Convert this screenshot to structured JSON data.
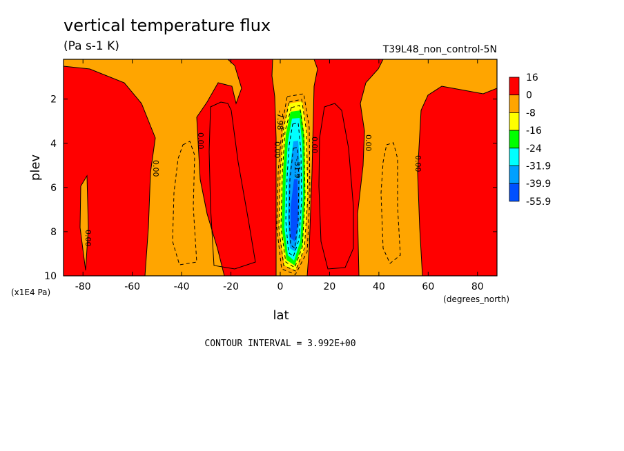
{
  "chart_data": {
    "type": "heatmap",
    "title": "vertical temperature flux",
    "units_label": "(Pa s-1 K)",
    "run_label": "T39L48_non_control-5N",
    "xlabel": "lat",
    "xlabel_units": "(degrees_north)",
    "ylabel": "plev",
    "ylabel_units": "(x1E4 Pa)",
    "x_ticks": [
      -80,
      -60,
      -40,
      -20,
      0,
      20,
      40,
      60,
      80
    ],
    "x_tick_labels": [
      "-80",
      "-60",
      "-40",
      "-20",
      "0",
      "20",
      "40",
      "60",
      "80"
    ],
    "y_ticks": [
      2,
      4,
      6,
      8,
      10
    ],
    "y_tick_labels": [
      "2",
      "4",
      "6",
      "8",
      "10"
    ],
    "xlim": [
      -87.9,
      87.9
    ],
    "ylim": [
      10,
      0.2
    ],
    "contour_interval_text": "CONTOUR INTERVAL = 3.992E+00",
    "legend": {
      "labels": [
        "16",
        "0",
        "-8",
        "-16",
        "-24",
        "-31.9",
        "-39.9",
        "-55.9"
      ],
      "colors": [
        "#ff0000",
        "#ffa500",
        "#ffff00",
        "#00ff00",
        "#00ffff",
        "#00a0ff",
        "#0050ff"
      ]
    },
    "contour_labels": [
      "0.00",
      "0.00",
      "0.00",
      "0.00",
      "0.00",
      "0.00",
      "0.00",
      "-7.98",
      "-31.9"
    ],
    "regions": [
      {
        "name": "positive-flux-band",
        "color": "#ff0000",
        "x_range": [
          -87.9,
          -52
        ],
        "y_range": [
          0.2,
          10
        ]
      },
      {
        "name": "negative-flux-band",
        "color": "#ffa500",
        "x_range": [
          -52,
          -28
        ],
        "y_range": [
          0.2,
          10
        ]
      },
      {
        "name": "positive-flux-band",
        "color": "#ff0000",
        "x_range": [
          -28,
          0
        ],
        "y_range": [
          0.2,
          10
        ]
      },
      {
        "name": "strong-updraft-core",
        "color": "#0050ff",
        "x_range": [
          2,
          10
        ],
        "y_range": [
          2.5,
          9.5
        ]
      },
      {
        "name": "positive-flux-band",
        "color": "#ff0000",
        "x_range": [
          13,
          35
        ],
        "y_range": [
          0.2,
          10
        ]
      },
      {
        "name": "negative-flux-band",
        "color": "#ffa500",
        "x_range": [
          35,
          57
        ],
        "y_range": [
          0.2,
          10
        ]
      },
      {
        "name": "positive-flux-band",
        "color": "#ff0000",
        "x_range": [
          57,
          87.9
        ],
        "y_range": [
          0.2,
          10
        ]
      }
    ]
  }
}
